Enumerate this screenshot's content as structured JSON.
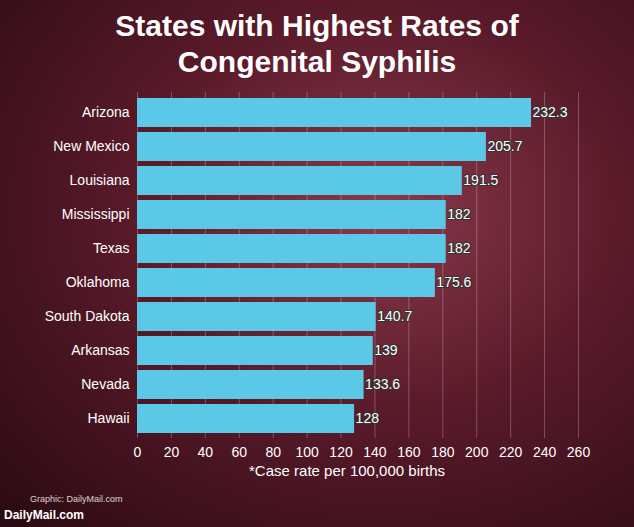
{
  "chart_data": {
    "type": "bar",
    "title": "States with Highest Rates of Congenital Syphilis",
    "x_label": "*Case rate per 100,000 births",
    "annotations": [
      "Graphic: DailyMail.com",
      "DailyMail.com"
    ],
    "categories": [
      "Arizona",
      "New Mexico",
      "Louisiana",
      "Mississippi",
      "Texas",
      "Oklahoma",
      "South Dakota",
      "Arkansas",
      "Nevada",
      "Hawaii"
    ],
    "values": [
      232.3,
      205.7,
      191.5,
      182,
      182,
      175.6,
      140.7,
      139,
      133.6,
      128
    ],
    "color": "#5bc8e8",
    "orientation": "horizontal",
    "xlim": [
      0,
      260
    ],
    "xticks": [
      0,
      20,
      40,
      60,
      80,
      100,
      120,
      140,
      160,
      180,
      200,
      220,
      240,
      260
    ],
    "grid": true,
    "data_labels": true
  }
}
